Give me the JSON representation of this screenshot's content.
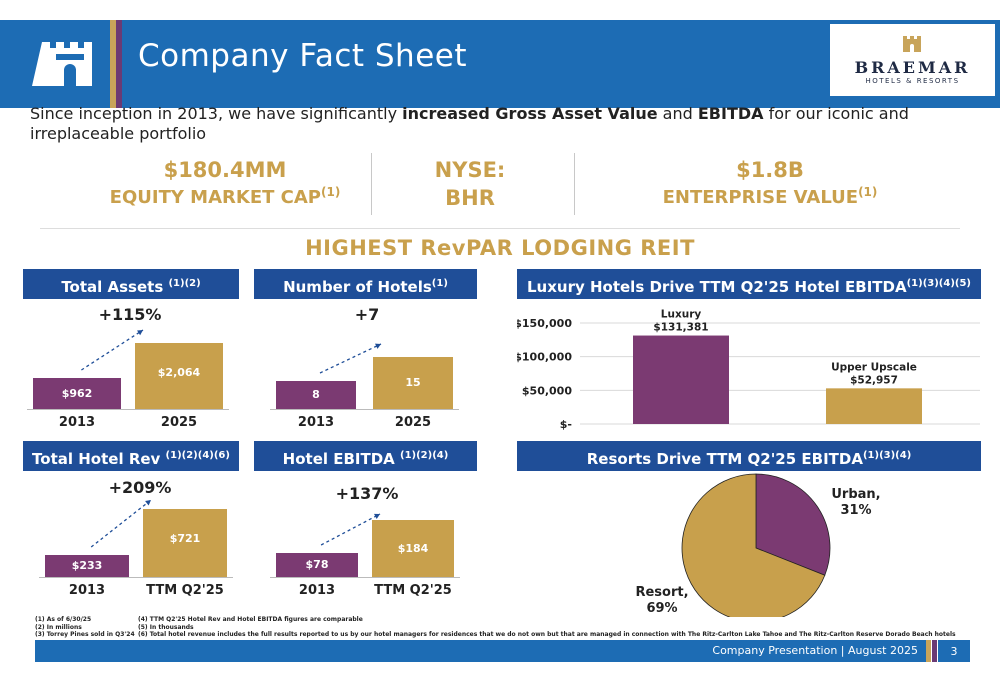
{
  "header": {
    "title": "Company Fact Sheet",
    "logo_name": "BRAEMAR",
    "logo_sub": "HOTELS & RESORTS"
  },
  "intro": {
    "part1": "Since inception in 2013, we have significantly ",
    "bold1": "increased Gross Asset Value",
    "part2": " and ",
    "bold2": "EBITDA",
    "part3": " for our iconic and irreplaceable portfolio"
  },
  "kpis": [
    {
      "value": "$180.4MM",
      "label": "EQUITY MARKET CAP",
      "sup": "(1)"
    },
    {
      "value": "NYSE:",
      "label": "BHR",
      "sup": ""
    },
    {
      "value": "$1.8B",
      "label": "ENTERPRISE VALUE",
      "sup": "(1)"
    }
  ],
  "headline": "HIGHEST RevPAR LODGING REIT",
  "panels": {
    "total_assets": {
      "title": "Total Assets ",
      "sup": "(1)(2)",
      "change": "+115%",
      "categories": [
        "2013",
        "2025"
      ],
      "values": [
        962,
        2064
      ],
      "labels": [
        "$962",
        "$2,064"
      ]
    },
    "num_hotels": {
      "title": "Number of Hotels",
      "sup": "(1)",
      "change": "+7",
      "categories": [
        "2013",
        "2025"
      ],
      "values": [
        8,
        15
      ],
      "labels": [
        "8",
        "15"
      ]
    },
    "total_hotel_rev": {
      "title": "Total Hotel Rev ",
      "sup": "(1)(2)(4)(6)",
      "change": "+209%",
      "categories": [
        "2013",
        "TTM Q2'25"
      ],
      "values": [
        233,
        721
      ],
      "labels": [
        "$233",
        "$721"
      ]
    },
    "hotel_ebitda": {
      "title": "Hotel EBITDA ",
      "sup": "(1)(2)(4)",
      "change": "+137%",
      "categories": [
        "2013",
        "TTM Q2'25"
      ],
      "values": [
        78,
        184
      ],
      "labels": [
        "$78",
        "$184"
      ]
    },
    "luxury": {
      "title": "Luxury Hotels Drive TTM Q2'25 Hotel EBITDA",
      "sup": "(1)(3)(4)(5)"
    },
    "resorts": {
      "title": "Resorts Drive TTM Q2'25 EBITDA",
      "sup": "(1)(3)(4)"
    }
  },
  "chart_data": [
    {
      "type": "bar",
      "title": "Total Assets",
      "categories": [
        "2013",
        "2025"
      ],
      "values": [
        962,
        2064
      ]
    },
    {
      "type": "bar",
      "title": "Number of Hotels",
      "categories": [
        "2013",
        "2025"
      ],
      "values": [
        8,
        15
      ]
    },
    {
      "type": "bar",
      "title": "Luxury Hotels Drive TTM Q2'25 Hotel EBITDA",
      "categories": [
        "Luxury",
        "Upper Upscale"
      ],
      "values": [
        131381,
        52957
      ],
      "data_labels": [
        "$131,381",
        "$52,957"
      ],
      "yticks": [
        "$150,000",
        "$100,000",
        "$50,000",
        "$-"
      ],
      "ylim": [
        0,
        150000
      ],
      "grid": true
    },
    {
      "type": "bar",
      "title": "Total Hotel Rev",
      "categories": [
        "2013",
        "TTM Q2'25"
      ],
      "values": [
        233,
        721
      ]
    },
    {
      "type": "bar",
      "title": "Hotel EBITDA",
      "categories": [
        "2013",
        "TTM Q2'25"
      ],
      "values": [
        78,
        184
      ]
    },
    {
      "type": "pie",
      "title": "Resorts Drive TTM Q2'25 EBITDA",
      "categories": [
        "Urban",
        "Resort"
      ],
      "values": [
        31,
        69
      ],
      "labels": [
        "Urban,",
        "31%",
        "Resort,",
        "69%"
      ]
    }
  ],
  "footnotes": {
    "left": [
      "(1) As of 6/30/25",
      "(2) In millions",
      "(3) Torrey Pines sold in Q3'24"
    ],
    "right": [
      "(4) TTM Q2'25 Hotel Rev and Hotel EBITDA figures are comparable",
      "(5) In thousands",
      "(6) Total hotel revenue includes the full results reported to us by our hotel managers for residences that we do not own but that are managed in connection with The Ritz-Carlton Lake Tahoe and The Ritz-Carlton Reserve Dorado Beach hotels"
    ]
  },
  "footer": {
    "text": "Company Presentation | August 2025",
    "page": "3"
  },
  "colors": {
    "blue": "#1d6cb4",
    "navy": "#1f4e98",
    "gold": "#c9a04c",
    "purple": "#7b3a72",
    "bar_gold": "#c8a04c"
  }
}
